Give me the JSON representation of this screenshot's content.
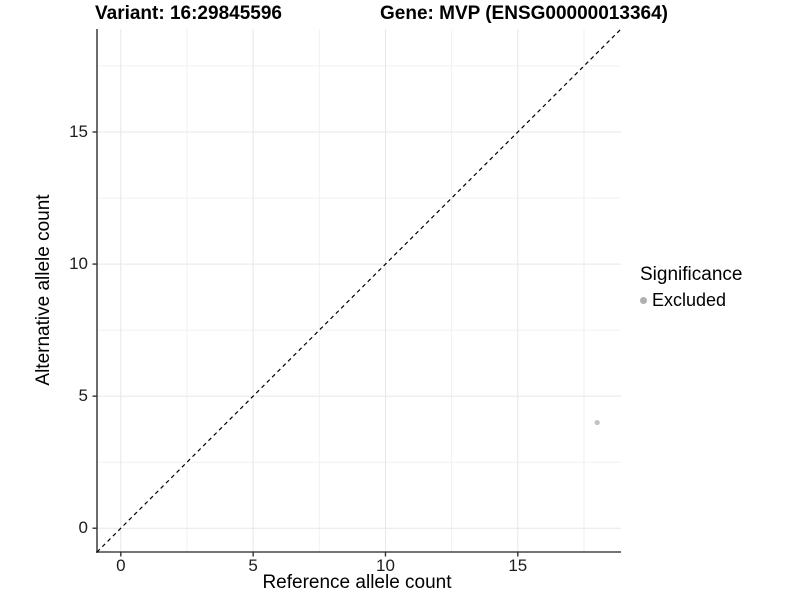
{
  "header": {
    "variant_title": "Variant: 16:29845596",
    "gene_title": "Gene: MVP (ENSG00000013364)"
  },
  "axes": {
    "x": {
      "title": "Reference allele count",
      "tick_labels": [
        "0",
        "5",
        "10",
        "15"
      ]
    },
    "y": {
      "title": "Alternative allele count",
      "tick_labels": [
        "0",
        "5",
        "10",
        "15"
      ]
    }
  },
  "legend": {
    "title": "Significance",
    "items": [
      {
        "label": "Excluded",
        "marker_color": "#b0b0b0"
      }
    ]
  },
  "chart_data": {
    "type": "scatter",
    "title": "Variant: 16:29845596  |  Gene: MVP (ENSG00000013364)",
    "xlabel": "Reference allele count",
    "ylabel": "Alternative allele count",
    "xlim": [
      -0.9,
      18.9
    ],
    "ylim": [
      -0.9,
      18.9
    ],
    "x_major_ticks": [
      0,
      5,
      10,
      15
    ],
    "x_minor_ticks": [
      2.5,
      7.5,
      12.5,
      17.5
    ],
    "y_major_ticks": [
      0,
      5,
      10,
      15
    ],
    "y_minor_ticks": [
      2.5,
      7.5,
      12.5,
      17.5
    ],
    "grid": true,
    "legend_position": "right",
    "series": [
      {
        "name": "Excluded",
        "color": "#c2c2c2",
        "points": [
          {
            "x": 18,
            "y": 4
          }
        ]
      }
    ],
    "reference_line": {
      "kind": "identity",
      "equation": "y = x",
      "style": "dashed",
      "color": "#000000"
    }
  },
  "colors": {
    "background": "#ffffff",
    "grid_major": "#e7e7e7",
    "grid_minor": "#f1f1f1",
    "axis_line": "#474747",
    "tick_mark": "#333333"
  }
}
